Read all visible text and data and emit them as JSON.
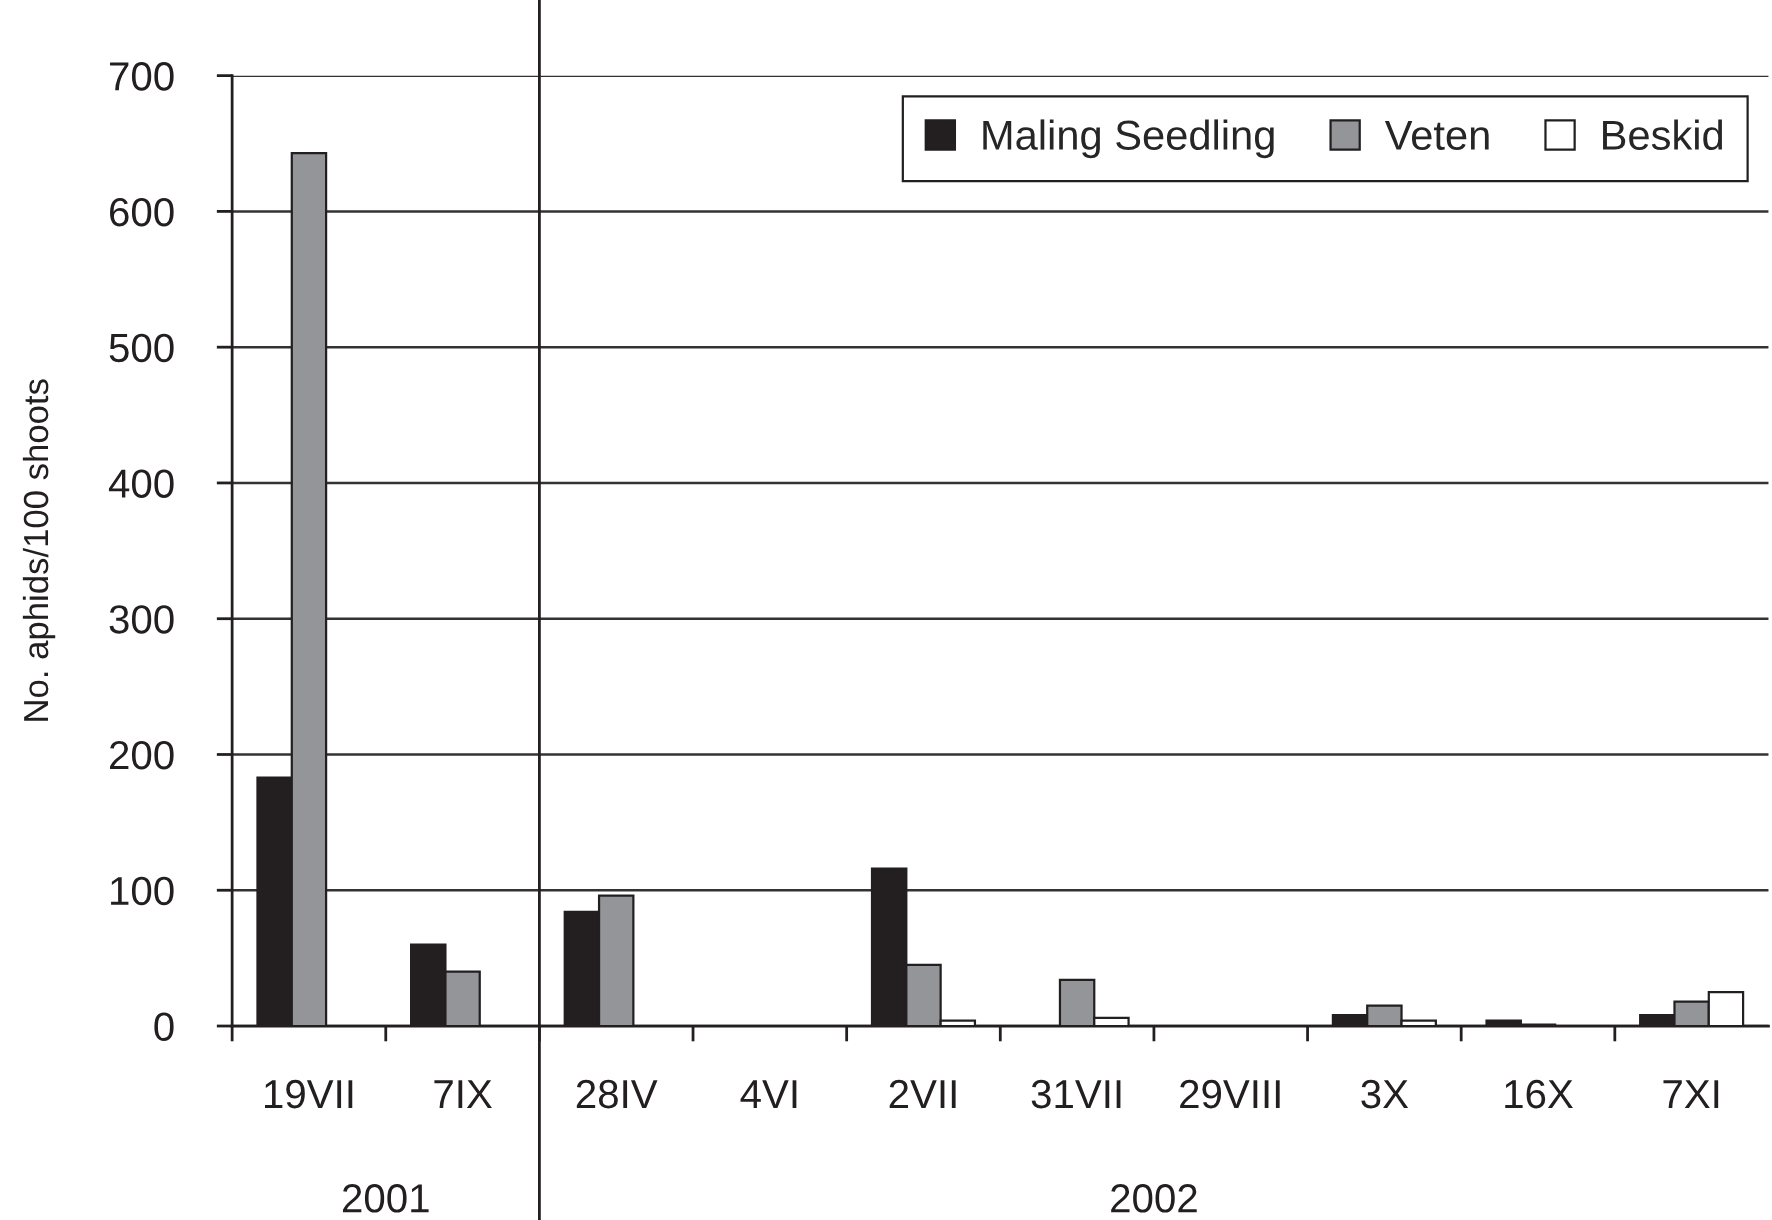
{
  "chart_data": [
    {
      "type": "bar",
      "categories": [
        "19VII",
        "7IX"
      ],
      "xlabel": "2001",
      "ylabel": "No. aphids/100 shoots",
      "ylim": [
        0,
        700
      ],
      "yticks": [
        0,
        100,
        200,
        300,
        400,
        500,
        600,
        700
      ],
      "grid": "y",
      "series": [
        {
          "color": "#231f20",
          "values": [
            183,
            60
          ]
        },
        {
          "color": "#939598",
          "values": [
            643,
            40
          ]
        },
        {
          "color": "#ffffff",
          "values": [
            null,
            null
          ]
        }
      ]
    },
    {
      "type": "bar",
      "categories": [
        "28IV",
        "4VI",
        "2VII",
        "31VII",
        "29VIII",
        "3X",
        "16X",
        "7XI"
      ],
      "xlabel": "2002",
      "ylim": [
        0,
        700
      ],
      "yticks": [
        0,
        100,
        200,
        300,
        400,
        500,
        600,
        700
      ],
      "tick_labels": "x",
      "grid": "y",
      "legend": "top right",
      "series": [
        {
          "name": "Maling Seedling",
          "color": "#231f20",
          "values": [
            84,
            0,
            116,
            0,
            0,
            8,
            4,
            8
          ]
        },
        {
          "name": "Veten",
          "color": "#939598",
          "values": [
            96,
            0,
            45,
            34,
            0,
            15,
            1,
            18
          ]
        },
        {
          "name": "Beskid",
          "color": "#ffffff",
          "values": [
            0,
            0,
            4,
            6,
            0,
            4,
            0,
            25
          ]
        }
      ]
    }
  ]
}
